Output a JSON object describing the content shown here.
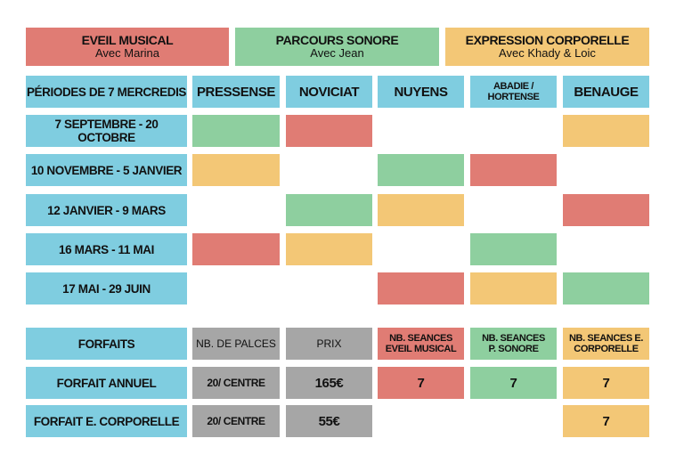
{
  "legend": [
    {
      "title": "EVEIL MUSICAL",
      "subtitle": "Avec Marina",
      "color": "#e07c74"
    },
    {
      "title": "PARCOURS SONORE",
      "subtitle": "Avec Jean",
      "color": "#8ecf9f"
    },
    {
      "title": "EXPRESSION CORPORELLE",
      "subtitle": "Avec Khady & Loic",
      "color": "#f3c776"
    }
  ],
  "schedule": {
    "corner_label": "PÉRIODES DE 7 MERCREDIS",
    "centres": [
      "PRESSENSE",
      "NOVICIAT",
      "NUYENS",
      "ABADIE / HORTENSE",
      "BENAUGE"
    ],
    "periods": [
      {
        "label": "7 SEPTEMBRE - 20 OCTOBRE",
        "cells": [
          "parcours-sonore",
          "eveil-musical",
          "",
          "",
          "expression-corporelle"
        ]
      },
      {
        "label": "10 NOVEMBRE - 5 JANVIER",
        "cells": [
          "expression-corporelle",
          "",
          "parcours-sonore",
          "eveil-musical",
          ""
        ]
      },
      {
        "label": "12 JANVIER - 9 MARS",
        "cells": [
          "",
          "parcours-sonore",
          "expression-corporelle",
          "",
          "eveil-musical"
        ]
      },
      {
        "label": "16 MARS - 11 MAI",
        "cells": [
          "eveil-musical",
          "expression-corporelle",
          "",
          "parcours-sonore",
          ""
        ]
      },
      {
        "label": "17 MAI - 29 JUIN",
        "cells": [
          "",
          "",
          "eveil-musical",
          "expression-corporelle",
          "parcours-sonore"
        ]
      }
    ]
  },
  "forfaits": {
    "header": {
      "label": "FORFAITS",
      "places": "NB. DE PALCES",
      "price": "PRIX",
      "eveil": "NB. SEANCES EVEIL MUSICAL",
      "sonore": "NB. SEANCES P. SONORE",
      "corporelle": "NB. SEANCES E. CORPORELLE"
    },
    "rows": [
      {
        "label": "FORFAIT ANNUEL",
        "places": "20/ CENTRE",
        "price": "165€",
        "eveil": "7",
        "sonore": "7",
        "corporelle": "7"
      },
      {
        "label": "FORFAIT E. CORPORELLE",
        "places": "20/ CENTRE",
        "price": "55€",
        "eveil": "",
        "sonore": "",
        "corporelle": "7"
      }
    ]
  },
  "colors": {
    "blue": "#7fcde0",
    "eveil-musical": "#e07c74",
    "parcours-sonore": "#8ecf9f",
    "expression-corporelle": "#f3c776",
    "grey": "#a6a6a6"
  }
}
